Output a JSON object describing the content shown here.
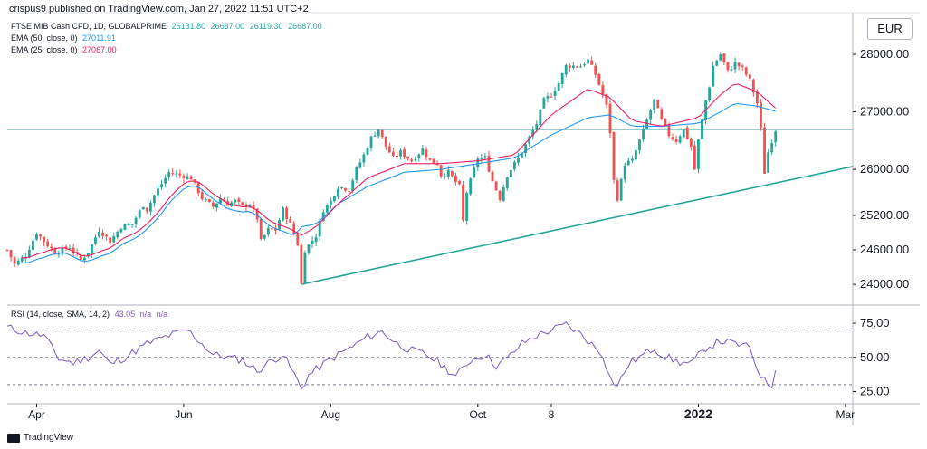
{
  "header": {
    "text": "crispus9 published on TradingView.com, Jan 27, 2022 11:51 UTC+2"
  },
  "legend": {
    "symbol": "FTSE MIB Cash CFD, 1D, GLOBALPRIME",
    "ohlc": [
      "26131.80",
      "26687.00",
      "26119.30",
      "26687.00"
    ],
    "ema50_label": "EMA (50, close, 0)",
    "ema50_value": "27011.91",
    "ema25_label": "EMA (25, close, 0)",
    "ema25_value": "27067.00"
  },
  "currency": "EUR",
  "rsi_legend": {
    "label": "RSI (14, close, SMA, 14, 2)",
    "value": "43.05",
    "na1": "n/a",
    "na2": "n/a"
  },
  "footer": {
    "brand": "TradingView"
  },
  "colors": {
    "up": "#26a69a",
    "down": "#ef5350",
    "ema50": "#2196f3",
    "ema25": "#e91e63",
    "rsi": "#7e57c2",
    "trendline": "#26a69a",
    "hline": "#26a69a",
    "legend_value": "#26a69a"
  },
  "chart_data": [
    {
      "type": "candlestick",
      "title": "FTSE MIB Cash CFD, 1D, GLOBALPRIME",
      "x_ticks": [
        "Apr",
        "Jun",
        "Aug",
        "Oct",
        "8",
        "2022",
        "Mar"
      ],
      "x_tick_positions": [
        0.5,
        2.5,
        4.5,
        6.5,
        7.5,
        9.5,
        11.5
      ],
      "x_range": [
        0.1,
        11.6
      ],
      "y_ticks": [
        24000,
        24600,
        25200,
        26000,
        27000,
        28000
      ],
      "y_tick_labels": [
        "24000.00",
        "24600.00",
        "25200.00",
        "26000.00",
        "27000.00",
        "28000.00"
      ],
      "y_range": [
        23750,
        28600
      ],
      "close_line": 26687,
      "anchors": [
        [
          0.1,
          24600
        ],
        [
          0.2,
          24350
        ],
        [
          0.35,
          24500
        ],
        [
          0.5,
          24900
        ],
        [
          0.6,
          24750
        ],
        [
          0.75,
          24550
        ],
        [
          0.95,
          24650
        ],
        [
          1.1,
          24420
        ],
        [
          1.2,
          24560
        ],
        [
          1.35,
          24950
        ],
        [
          1.5,
          24750
        ],
        [
          1.65,
          25000
        ],
        [
          1.8,
          25050
        ],
        [
          1.95,
          25380
        ],
        [
          2.0,
          25300
        ],
        [
          2.1,
          25550
        ],
        [
          2.2,
          25750
        ],
        [
          2.3,
          25950
        ],
        [
          2.45,
          25900
        ],
        [
          2.6,
          25850
        ],
        [
          2.75,
          25500
        ],
        [
          2.8,
          25450
        ],
        [
          2.9,
          25350
        ],
        [
          3.0,
          25500
        ],
        [
          3.1,
          25400
        ],
        [
          3.2,
          25450
        ],
        [
          3.3,
          25350
        ],
        [
          3.4,
          25400
        ],
        [
          3.5,
          25150
        ],
        [
          3.55,
          24750
        ],
        [
          3.65,
          24950
        ],
        [
          3.75,
          24950
        ],
        [
          3.85,
          25300
        ],
        [
          3.95,
          25050
        ],
        [
          4.05,
          24700
        ],
        [
          4.1,
          24000
        ],
        [
          4.15,
          24600
        ],
        [
          4.3,
          24850
        ],
        [
          4.4,
          25300
        ],
        [
          4.5,
          25450
        ],
        [
          4.6,
          25700
        ],
        [
          4.75,
          25650
        ],
        [
          4.85,
          26000
        ],
        [
          4.95,
          26250
        ],
        [
          5.05,
          26550
        ],
        [
          5.15,
          26700
        ],
        [
          5.25,
          26400
        ],
        [
          5.35,
          26200
        ],
        [
          5.45,
          26300
        ],
        [
          5.6,
          26150
        ],
        [
          5.75,
          26350
        ],
        [
          5.85,
          26150
        ],
        [
          5.95,
          26100
        ],
        [
          6.0,
          25900
        ],
        [
          6.1,
          25950
        ],
        [
          6.25,
          25700
        ],
        [
          6.3,
          25100
        ],
        [
          6.35,
          25600
        ],
        [
          6.5,
          26200
        ],
        [
          6.6,
          26200
        ],
        [
          6.7,
          25800
        ],
        [
          6.8,
          25500
        ],
        [
          6.9,
          25900
        ],
        [
          7.0,
          26100
        ],
        [
          7.1,
          26300
        ],
        [
          7.2,
          26550
        ],
        [
          7.3,
          26800
        ],
        [
          7.4,
          27200
        ],
        [
          7.5,
          27300
        ],
        [
          7.6,
          27500
        ],
        [
          7.7,
          27800
        ],
        [
          7.8,
          27800
        ],
        [
          7.9,
          27800
        ],
        [
          8.0,
          27900
        ],
        [
          8.1,
          27650
        ],
        [
          8.2,
          27300
        ],
        [
          8.25,
          27100
        ],
        [
          8.3,
          26650
        ],
        [
          8.35,
          25800
        ],
        [
          8.4,
          25500
        ],
        [
          8.5,
          26100
        ],
        [
          8.6,
          26150
        ],
        [
          8.7,
          26500
        ],
        [
          8.8,
          26850
        ],
        [
          8.9,
          27200
        ],
        [
          9.0,
          26850
        ],
        [
          9.1,
          26600
        ],
        [
          9.2,
          26500
        ],
        [
          9.3,
          26700
        ],
        [
          9.4,
          26400
        ],
        [
          9.45,
          26000
        ],
        [
          9.5,
          26500
        ],
        [
          9.6,
          27200
        ],
        [
          9.65,
          27450
        ],
        [
          9.7,
          27800
        ],
        [
          9.8,
          28000
        ],
        [
          9.9,
          27700
        ],
        [
          10.0,
          27850
        ],
        [
          10.1,
          27750
        ],
        [
          10.2,
          27550
        ],
        [
          10.3,
          27150
        ],
        [
          10.35,
          26700
        ],
        [
          10.4,
          25950
        ],
        [
          10.45,
          26300
        ],
        [
          10.5,
          26500
        ],
        [
          10.55,
          26687
        ]
      ],
      "ema50_anchors": [
        [
          4.1,
          25000
        ],
        [
          4.3,
          25050
        ],
        [
          4.6,
          25400
        ],
        [
          5.0,
          25700
        ],
        [
          5.5,
          25950
        ],
        [
          6.0,
          26000
        ],
        [
          6.5,
          26100
        ],
        [
          7.0,
          26200
        ],
        [
          7.5,
          26600
        ],
        [
          8.0,
          26900
        ],
        [
          8.3,
          26950
        ],
        [
          8.6,
          26750
        ],
        [
          9.0,
          26750
        ],
        [
          9.5,
          26800
        ],
        [
          9.8,
          27000
        ],
        [
          10.0,
          27150
        ],
        [
          10.3,
          27100
        ],
        [
          10.55,
          27012
        ]
      ],
      "ema25_anchors": [
        [
          4.1,
          24850
        ],
        [
          4.3,
          25000
        ],
        [
          4.6,
          25400
        ],
        [
          5.0,
          25850
        ],
        [
          5.5,
          26100
        ],
        [
          6.0,
          26100
        ],
        [
          6.5,
          26150
        ],
        [
          7.0,
          26250
        ],
        [
          7.5,
          26950
        ],
        [
          8.0,
          27400
        ],
        [
          8.3,
          27250
        ],
        [
          8.6,
          26850
        ],
        [
          9.0,
          26750
        ],
        [
          9.5,
          26900
        ],
        [
          9.8,
          27300
        ],
        [
          10.0,
          27500
        ],
        [
          10.3,
          27350
        ],
        [
          10.55,
          27067
        ]
      ],
      "trendline": [
        [
          4.1,
          24000
        ],
        [
          11.6,
          26050
        ]
      ]
    },
    {
      "type": "line",
      "title": "RSI (14, close, SMA, 14, 2)",
      "y_ticks": [
        25,
        50,
        75
      ],
      "y_tick_labels": [
        "25.00",
        "50.00",
        "75.00"
      ],
      "y_range": [
        20,
        83
      ],
      "bands": [
        30,
        50,
        70
      ],
      "anchors": [
        [
          0.1,
          72
        ],
        [
          0.35,
          68
        ],
        [
          0.6,
          66
        ],
        [
          0.8,
          49
        ],
        [
          1.0,
          46
        ],
        [
          1.2,
          50
        ],
        [
          1.35,
          55
        ],
        [
          1.5,
          45
        ],
        [
          1.7,
          50
        ],
        [
          2.0,
          60
        ],
        [
          2.3,
          66
        ],
        [
          2.55,
          70
        ],
        [
          2.75,
          60
        ],
        [
          2.9,
          52
        ],
        [
          3.1,
          50
        ],
        [
          3.3,
          48
        ],
        [
          3.5,
          40
        ],
        [
          3.7,
          48
        ],
        [
          3.85,
          52
        ],
        [
          4.0,
          38
        ],
        [
          4.1,
          27
        ],
        [
          4.2,
          37
        ],
        [
          4.4,
          45
        ],
        [
          4.6,
          52
        ],
        [
          4.8,
          58
        ],
        [
          5.0,
          65
        ],
        [
          5.2,
          69
        ],
        [
          5.4,
          60
        ],
        [
          5.6,
          55
        ],
        [
          5.8,
          52
        ],
        [
          6.0,
          45
        ],
        [
          6.2,
          36
        ],
        [
          6.4,
          48
        ],
        [
          6.6,
          52
        ],
        [
          6.75,
          44
        ],
        [
          6.9,
          49
        ],
        [
          7.1,
          60
        ],
        [
          7.3,
          66
        ],
        [
          7.5,
          70
        ],
        [
          7.7,
          74
        ],
        [
          7.9,
          67
        ],
        [
          8.0,
          62
        ],
        [
          8.2,
          52
        ],
        [
          8.3,
          35
        ],
        [
          8.4,
          29
        ],
        [
          8.55,
          45
        ],
        [
          8.7,
          50
        ],
        [
          8.9,
          57
        ],
        [
          9.0,
          52
        ],
        [
          9.2,
          47
        ],
        [
          9.4,
          45
        ],
        [
          9.6,
          57
        ],
        [
          9.8,
          62
        ],
        [
          10.0,
          60
        ],
        [
          10.2,
          57
        ],
        [
          10.3,
          42
        ],
        [
          10.4,
          33
        ],
        [
          10.5,
          29
        ],
        [
          10.55,
          43
        ]
      ]
    }
  ]
}
